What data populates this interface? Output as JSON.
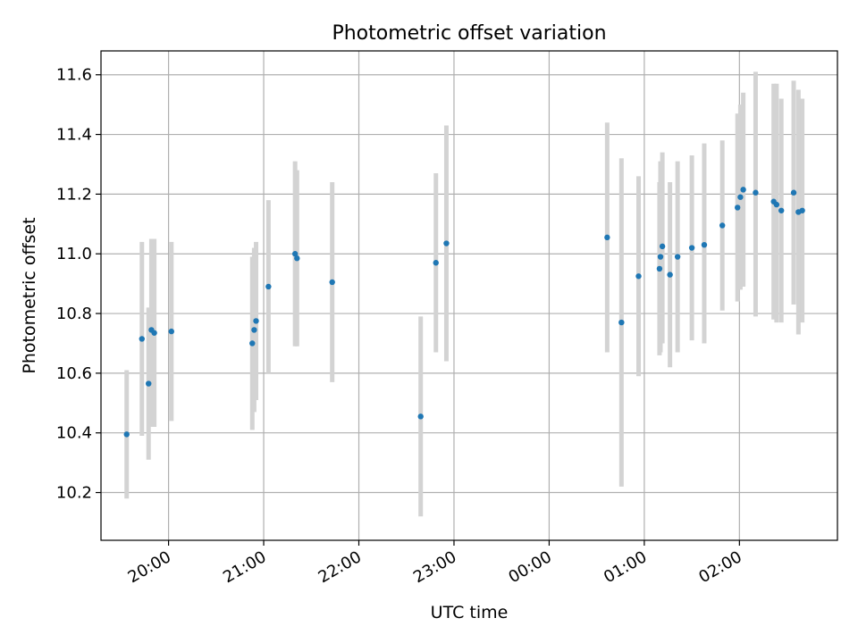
{
  "chart_data": {
    "type": "scatter",
    "title": "Photometric offset variation",
    "xlabel": "UTC time",
    "ylabel": "Photometric offset",
    "x_unit": "UTC hour (continuous, >24 = next day)",
    "xlim": [
      19.29,
      27.03
    ],
    "ylim": [
      10.04,
      11.68
    ],
    "x_ticks": [
      {
        "value": 20,
        "label": "20:00"
      },
      {
        "value": 21,
        "label": "21:00"
      },
      {
        "value": 22,
        "label": "22:00"
      },
      {
        "value": 23,
        "label": "23:00"
      },
      {
        "value": 24,
        "label": "00:00"
      },
      {
        "value": 25,
        "label": "01:00"
      },
      {
        "value": 26,
        "label": "02:00"
      }
    ],
    "y_ticks": [
      {
        "value": 10.2,
        "label": "10.2"
      },
      {
        "value": 10.4,
        "label": "10.4"
      },
      {
        "value": 10.6,
        "label": "10.6"
      },
      {
        "value": 10.8,
        "label": "10.8"
      },
      {
        "value": 11.0,
        "label": "11.0"
      },
      {
        "value": 11.2,
        "label": "11.2"
      },
      {
        "value": 11.4,
        "label": "11.4"
      },
      {
        "value": 11.6,
        "label": "11.6"
      }
    ],
    "grid": true,
    "colors": {
      "points": "#1f77b4",
      "error_bars": "#d3d3d3"
    },
    "points": [
      {
        "x": 19.56,
        "y": 10.395,
        "ylo": 10.18,
        "yhi": 10.61
      },
      {
        "x": 19.72,
        "y": 10.715,
        "ylo": 10.39,
        "yhi": 11.04
      },
      {
        "x": 19.79,
        "y": 10.565,
        "ylo": 10.31,
        "yhi": 10.82
      },
      {
        "x": 19.82,
        "y": 10.745,
        "ylo": 10.42,
        "yhi": 11.05
      },
      {
        "x": 19.85,
        "y": 10.735,
        "ylo": 10.42,
        "yhi": 11.05
      },
      {
        "x": 20.03,
        "y": 10.74,
        "ylo": 10.44,
        "yhi": 11.04
      },
      {
        "x": 20.88,
        "y": 10.7,
        "ylo": 10.41,
        "yhi": 10.99
      },
      {
        "x": 20.9,
        "y": 10.745,
        "ylo": 10.47,
        "yhi": 11.02
      },
      {
        "x": 20.92,
        "y": 10.775,
        "ylo": 10.51,
        "yhi": 11.04
      },
      {
        "x": 21.05,
        "y": 10.89,
        "ylo": 10.6,
        "yhi": 11.18
      },
      {
        "x": 21.33,
        "y": 11.0,
        "ylo": 10.69,
        "yhi": 11.31
      },
      {
        "x": 21.35,
        "y": 10.985,
        "ylo": 10.69,
        "yhi": 11.28
      },
      {
        "x": 21.72,
        "y": 10.905,
        "ylo": 10.57,
        "yhi": 11.24
      },
      {
        "x": 22.65,
        "y": 10.455,
        "ylo": 10.12,
        "yhi": 10.79
      },
      {
        "x": 22.81,
        "y": 10.97,
        "ylo": 10.67,
        "yhi": 11.27
      },
      {
        "x": 22.92,
        "y": 11.035,
        "ylo": 10.64,
        "yhi": 11.43
      },
      {
        "x": 24.61,
        "y": 11.055,
        "ylo": 10.67,
        "yhi": 11.44
      },
      {
        "x": 24.76,
        "y": 10.77,
        "ylo": 10.22,
        "yhi": 11.32
      },
      {
        "x": 24.94,
        "y": 10.925,
        "ylo": 10.59,
        "yhi": 11.26
      },
      {
        "x": 25.16,
        "y": 10.95,
        "ylo": 10.66,
        "yhi": 11.24
      },
      {
        "x": 25.17,
        "y": 10.99,
        "ylo": 10.67,
        "yhi": 11.31
      },
      {
        "x": 25.19,
        "y": 11.025,
        "ylo": 10.7,
        "yhi": 11.34
      },
      {
        "x": 25.27,
        "y": 10.93,
        "ylo": 10.62,
        "yhi": 11.24
      },
      {
        "x": 25.35,
        "y": 10.99,
        "ylo": 10.67,
        "yhi": 11.31
      },
      {
        "x": 25.5,
        "y": 11.02,
        "ylo": 10.71,
        "yhi": 11.33
      },
      {
        "x": 25.63,
        "y": 11.03,
        "ylo": 10.7,
        "yhi": 11.37
      },
      {
        "x": 25.82,
        "y": 11.095,
        "ylo": 10.81,
        "yhi": 11.38
      },
      {
        "x": 25.98,
        "y": 11.155,
        "ylo": 10.84,
        "yhi": 11.47
      },
      {
        "x": 26.01,
        "y": 11.19,
        "ylo": 10.88,
        "yhi": 11.5
      },
      {
        "x": 26.04,
        "y": 11.215,
        "ylo": 10.89,
        "yhi": 11.54
      },
      {
        "x": 26.17,
        "y": 11.205,
        "ylo": 10.79,
        "yhi": 11.61
      },
      {
        "x": 26.36,
        "y": 11.175,
        "ylo": 10.78,
        "yhi": 11.57
      },
      {
        "x": 26.39,
        "y": 11.165,
        "ylo": 10.77,
        "yhi": 11.57
      },
      {
        "x": 26.44,
        "y": 11.145,
        "ylo": 10.77,
        "yhi": 11.52
      },
      {
        "x": 26.57,
        "y": 11.205,
        "ylo": 10.83,
        "yhi": 11.58
      },
      {
        "x": 26.62,
        "y": 11.14,
        "ylo": 10.73,
        "yhi": 11.55
      },
      {
        "x": 26.66,
        "y": 11.145,
        "ylo": 10.77,
        "yhi": 11.52
      }
    ]
  }
}
